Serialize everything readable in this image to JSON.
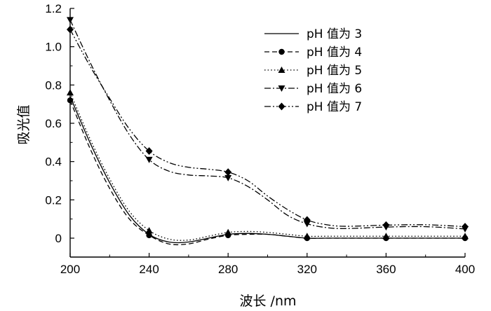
{
  "chart_data": {
    "type": "line",
    "title": "",
    "xlabel": "波长 /nm",
    "ylabel": "吸光值",
    "xlim": [
      200,
      400
    ],
    "ylim": [
      -0.1,
      1.2
    ],
    "x_ticks": [
      "200",
      "240",
      "280",
      "320",
      "360",
      "400"
    ],
    "y_ticks": [
      "0",
      "0.2",
      "0.4",
      "0.6",
      "0.8",
      "1.0",
      "1.2"
    ],
    "grid": false,
    "legend_position": "top-right",
    "x": [
      200,
      240,
      280,
      320,
      360,
      400
    ],
    "series": [
      {
        "name": "pH 值为 3",
        "marker": "none",
        "dash": "solid",
        "curve": [
          [
            200,
            0.74
          ],
          [
            210,
            0.5
          ],
          [
            220,
            0.29
          ],
          [
            230,
            0.12
          ],
          [
            240,
            0.02
          ],
          [
            250,
            -0.02
          ],
          [
            260,
            -0.02
          ],
          [
            270,
            0.0
          ],
          [
            280,
            0.02
          ],
          [
            290,
            0.025
          ],
          [
            300,
            0.02
          ],
          [
            310,
            0.01
          ],
          [
            320,
            0.0
          ],
          [
            330,
            0.0
          ],
          [
            340,
            0.0
          ],
          [
            360,
            0.0
          ],
          [
            380,
            0.0
          ],
          [
            400,
            0.0
          ]
        ]
      },
      {
        "name": "pH 值为 4",
        "marker": "circle",
        "dash": "dashed",
        "curve": [
          [
            200,
            0.72
          ],
          [
            210,
            0.47
          ],
          [
            220,
            0.26
          ],
          [
            230,
            0.1
          ],
          [
            240,
            0.015
          ],
          [
            250,
            -0.03
          ],
          [
            260,
            -0.03
          ],
          [
            270,
            -0.005
          ],
          [
            280,
            0.015
          ],
          [
            290,
            0.02
          ],
          [
            300,
            0.02
          ],
          [
            310,
            0.01
          ],
          [
            320,
            0.0
          ],
          [
            330,
            0.0
          ],
          [
            340,
            0.0
          ],
          [
            360,
            0.0
          ],
          [
            380,
            0.0
          ],
          [
            400,
            0.0
          ]
        ]
      },
      {
        "name": "pH 值为 5",
        "marker": "triangle-up",
        "dash": "dotted",
        "curve": [
          [
            200,
            0.76
          ],
          [
            210,
            0.52
          ],
          [
            220,
            0.31
          ],
          [
            230,
            0.14
          ],
          [
            240,
            0.04
          ],
          [
            250,
            -0.005
          ],
          [
            260,
            -0.01
          ],
          [
            270,
            0.01
          ],
          [
            280,
            0.03
          ],
          [
            290,
            0.035
          ],
          [
            300,
            0.03
          ],
          [
            310,
            0.02
          ],
          [
            320,
            0.01
          ],
          [
            330,
            0.01
          ],
          [
            340,
            0.01
          ],
          [
            360,
            0.01
          ],
          [
            380,
            0.01
          ],
          [
            400,
            0.01
          ]
        ]
      },
      {
        "name": "pH 值为 6",
        "marker": "triangle-down",
        "dash": "dashdot",
        "curve": [
          [
            200,
            1.14
          ],
          [
            210,
            0.92
          ],
          [
            220,
            0.72
          ],
          [
            230,
            0.54
          ],
          [
            240,
            0.41
          ],
          [
            250,
            0.35
          ],
          [
            260,
            0.33
          ],
          [
            270,
            0.325
          ],
          [
            280,
            0.315
          ],
          [
            290,
            0.27
          ],
          [
            300,
            0.2
          ],
          [
            310,
            0.12
          ],
          [
            320,
            0.075
          ],
          [
            330,
            0.055
          ],
          [
            340,
            0.05
          ],
          [
            360,
            0.058
          ],
          [
            380,
            0.06
          ],
          [
            400,
            0.048
          ]
        ]
      },
      {
        "name": "pH 值为 7",
        "marker": "diamond",
        "dash": "dashdotdot",
        "curve": [
          [
            200,
            1.09
          ],
          [
            210,
            0.9
          ],
          [
            220,
            0.73
          ],
          [
            230,
            0.57
          ],
          [
            240,
            0.455
          ],
          [
            250,
            0.395
          ],
          [
            260,
            0.37
          ],
          [
            270,
            0.36
          ],
          [
            280,
            0.345
          ],
          [
            290,
            0.3
          ],
          [
            300,
            0.22
          ],
          [
            310,
            0.15
          ],
          [
            320,
            0.095
          ],
          [
            330,
            0.07
          ],
          [
            340,
            0.062
          ],
          [
            360,
            0.068
          ],
          [
            380,
            0.07
          ],
          [
            400,
            0.06
          ]
        ]
      }
    ]
  }
}
